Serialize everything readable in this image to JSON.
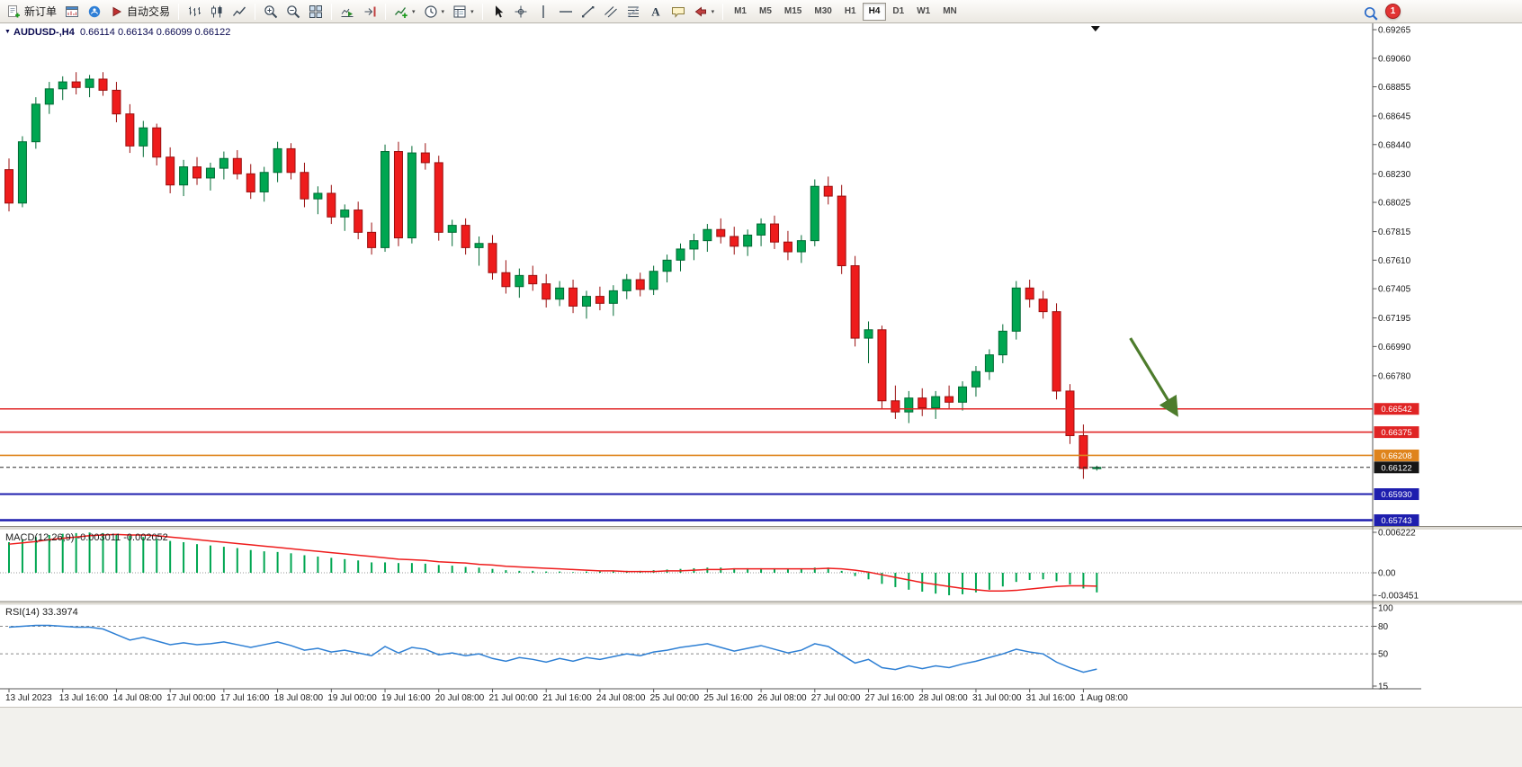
{
  "toolbar": {
    "groups": [
      {
        "buttons": [
          {
            "name": "new-order-button",
            "icon": "new_order",
            "label": "新订单"
          },
          {
            "name": "charts-button",
            "icon": "chart_window"
          },
          {
            "name": "community-button",
            "icon": "community"
          },
          {
            "name": "auto-trading-button",
            "icon": "autotrade",
            "label": "自动交易"
          }
        ]
      },
      {
        "buttons": [
          {
            "name": "bar-chart-button",
            "icon": "bars_chart"
          },
          {
            "name": "candlestick-chart-button",
            "icon": "candles_chart"
          },
          {
            "name": "line-chart-button",
            "icon": "line_chart"
          }
        ]
      },
      {
        "buttons": [
          {
            "name": "zoom-in-button",
            "icon": "zoom_in"
          },
          {
            "name": "zoom-out-button",
            "icon": "zoom_out"
          },
          {
            "name": "tile-windows-button",
            "icon": "tile_windows"
          }
        ]
      },
      {
        "buttons": [
          {
            "name": "auto-scroll-button",
            "icon": "auto_scroll"
          },
          {
            "name": "chart-shift-button",
            "icon": "chart_shift"
          }
        ]
      },
      {
        "buttons": [
          {
            "name": "indicators-button",
            "icon": "indicators",
            "dropdown": true
          },
          {
            "name": "periods-button",
            "icon": "periods",
            "dropdown": true
          },
          {
            "name": "templates-button",
            "icon": "templates",
            "dropdown": true
          }
        ]
      },
      {
        "buttons": [
          {
            "name": "cursor-button",
            "icon": "cursor"
          },
          {
            "name": "crosshair-button",
            "icon": "crosshair"
          },
          {
            "name": "vertical-line-button",
            "icon": "vline"
          },
          {
            "name": "horizontal-line-button",
            "icon": "hline"
          },
          {
            "name": "trendline-button",
            "icon": "trendline"
          },
          {
            "name": "channel-button",
            "icon": "channel"
          },
          {
            "name": "fibonacci-button",
            "icon": "fibo"
          },
          {
            "name": "text-button",
            "icon": "text"
          },
          {
            "name": "text-label-button",
            "icon": "text_label"
          },
          {
            "name": "shapes-button",
            "icon": "shapes",
            "dropdown": true
          }
        ]
      }
    ],
    "timeframes": {
      "options": [
        "M1",
        "M5",
        "M15",
        "M30",
        "H1",
        "H4",
        "D1",
        "W1",
        "MN"
      ],
      "active": "H4"
    },
    "badge_count": "1"
  },
  "chart": {
    "symbol_tf": "AUDUSD-,H4",
    "quote_line": "0.66114 0.66134 0.66099 0.66122"
  },
  "chart_data": {
    "type": "candlestick",
    "symbol": "AUDUSD-",
    "timeframe": "H4",
    "colors": {
      "up": "#00a651",
      "up_stroke": "#006a33",
      "down": "#ee1c1c",
      "down_stroke": "#9a0f0f"
    },
    "y_ticks": [
      "0.69265",
      "0.69060",
      "0.68855",
      "0.68645",
      "0.68440",
      "0.68230",
      "0.68025",
      "0.67815",
      "0.67610",
      "0.67405",
      "0.67195",
      "0.66990",
      "0.66780"
    ],
    "x_labels": [
      "13 Jul 2023",
      "13 Jul 16:00",
      "14 Jul 08:00",
      "17 Jul 00:00",
      "17 Jul 16:00",
      "18 Jul 08:00",
      "19 Jul 00:00",
      "19 Jul 16:00",
      "20 Jul 08:00",
      "21 Jul 00:00",
      "21 Jul 16:00",
      "24 Jul 08:00",
      "25 Jul 00:00",
      "25 Jul 16:00",
      "26 Jul 08:00",
      "27 Jul 00:00",
      "27 Jul 16:00",
      "28 Jul 08:00",
      "31 Jul 00:00",
      "31 Jul 16:00",
      "1 Aug 08:00"
    ],
    "candles_per_label": 4,
    "candles": [
      [
        0.6826,
        0.6834,
        0.6796,
        0.6802
      ],
      [
        0.6802,
        0.685,
        0.6799,
        0.6846
      ],
      [
        0.6846,
        0.6878,
        0.6841,
        0.6873
      ],
      [
        0.6873,
        0.6889,
        0.6866,
        0.6884
      ],
      [
        0.6884,
        0.6893,
        0.6876,
        0.6889
      ],
      [
        0.6889,
        0.6896,
        0.688,
        0.6885
      ],
      [
        0.6885,
        0.6894,
        0.6878,
        0.6891
      ],
      [
        0.6891,
        0.6896,
        0.6879,
        0.6883
      ],
      [
        0.6883,
        0.6889,
        0.686,
        0.6866
      ],
      [
        0.6866,
        0.6873,
        0.6838,
        0.6843
      ],
      [
        0.6843,
        0.6861,
        0.6835,
        0.6856
      ],
      [
        0.6856,
        0.6859,
        0.6829,
        0.6835
      ],
      [
        0.6835,
        0.6842,
        0.6809,
        0.6815
      ],
      [
        0.6815,
        0.6833,
        0.6807,
        0.6828
      ],
      [
        0.6828,
        0.6835,
        0.6815,
        0.682
      ],
      [
        0.682,
        0.6831,
        0.6811,
        0.6827
      ],
      [
        0.6827,
        0.6839,
        0.6819,
        0.6834
      ],
      [
        0.6834,
        0.684,
        0.6819,
        0.6823
      ],
      [
        0.6823,
        0.683,
        0.6805,
        0.681
      ],
      [
        0.681,
        0.6828,
        0.6803,
        0.6824
      ],
      [
        0.6824,
        0.6846,
        0.6817,
        0.6841
      ],
      [
        0.6841,
        0.6845,
        0.6819,
        0.6824
      ],
      [
        0.6824,
        0.6831,
        0.6799,
        0.6805
      ],
      [
        0.6805,
        0.6814,
        0.6794,
        0.6809
      ],
      [
        0.6809,
        0.6815,
        0.6787,
        0.6792
      ],
      [
        0.6792,
        0.6801,
        0.6782,
        0.6797
      ],
      [
        0.6797,
        0.6803,
        0.6776,
        0.6781
      ],
      [
        0.6781,
        0.6788,
        0.6765,
        0.677
      ],
      [
        0.677,
        0.6844,
        0.6767,
        0.6839
      ],
      [
        0.6839,
        0.6846,
        0.6771,
        0.6777
      ],
      [
        0.6777,
        0.6843,
        0.6773,
        0.6838
      ],
      [
        0.6838,
        0.6845,
        0.6826,
        0.6831
      ],
      [
        0.6831,
        0.6836,
        0.6775,
        0.6781
      ],
      [
        0.6781,
        0.679,
        0.6771,
        0.6786
      ],
      [
        0.6786,
        0.6791,
        0.6765,
        0.677
      ],
      [
        0.677,
        0.6778,
        0.6757,
        0.6773
      ],
      [
        0.6773,
        0.6779,
        0.6747,
        0.6752
      ],
      [
        0.6752,
        0.6761,
        0.6737,
        0.6742
      ],
      [
        0.6742,
        0.6755,
        0.6734,
        0.675
      ],
      [
        0.675,
        0.6757,
        0.6739,
        0.6744
      ],
      [
        0.6744,
        0.6751,
        0.6727,
        0.6733
      ],
      [
        0.6733,
        0.6746,
        0.6728,
        0.6741
      ],
      [
        0.6741,
        0.6747,
        0.6723,
        0.6728
      ],
      [
        0.6728,
        0.6739,
        0.6719,
        0.6735
      ],
      [
        0.6735,
        0.6742,
        0.6725,
        0.673
      ],
      [
        0.673,
        0.6743,
        0.6721,
        0.6739
      ],
      [
        0.6739,
        0.6751,
        0.6733,
        0.6747
      ],
      [
        0.6747,
        0.6752,
        0.6735,
        0.674
      ],
      [
        0.674,
        0.6757,
        0.6736,
        0.6753
      ],
      [
        0.6753,
        0.6765,
        0.6745,
        0.6761
      ],
      [
        0.6761,
        0.6773,
        0.6753,
        0.6769
      ],
      [
        0.6769,
        0.678,
        0.6761,
        0.6775
      ],
      [
        0.6775,
        0.6787,
        0.6767,
        0.6783
      ],
      [
        0.6783,
        0.6791,
        0.6773,
        0.6778
      ],
      [
        0.6778,
        0.6785,
        0.6765,
        0.6771
      ],
      [
        0.6771,
        0.6783,
        0.6764,
        0.6779
      ],
      [
        0.6779,
        0.6791,
        0.6771,
        0.6787
      ],
      [
        0.6787,
        0.6793,
        0.6769,
        0.6774
      ],
      [
        0.6774,
        0.6782,
        0.6761,
        0.6767
      ],
      [
        0.6767,
        0.6779,
        0.6759,
        0.6775
      ],
      [
        0.6775,
        0.6819,
        0.6771,
        0.6814
      ],
      [
        0.6814,
        0.6821,
        0.6801,
        0.6807
      ],
      [
        0.6807,
        0.6815,
        0.6751,
        0.6757
      ],
      [
        0.6757,
        0.6764,
        0.6699,
        0.6705
      ],
      [
        0.6705,
        0.6717,
        0.6687,
        0.6711
      ],
      [
        0.6711,
        0.6714,
        0.6654,
        0.666
      ],
      [
        0.666,
        0.6671,
        0.6647,
        0.6652
      ],
      [
        0.6652,
        0.6667,
        0.6644,
        0.6662
      ],
      [
        0.6662,
        0.6669,
        0.6649,
        0.6655
      ],
      [
        0.6655,
        0.6667,
        0.6647,
        0.6663
      ],
      [
        0.6663,
        0.6671,
        0.6654,
        0.6659
      ],
      [
        0.6659,
        0.6674,
        0.6653,
        0.667
      ],
      [
        0.667,
        0.6685,
        0.6663,
        0.6681
      ],
      [
        0.6681,
        0.6697,
        0.6675,
        0.6693
      ],
      [
        0.6693,
        0.6715,
        0.6687,
        0.671
      ],
      [
        0.671,
        0.6746,
        0.6704,
        0.6741
      ],
      [
        0.6741,
        0.6747,
        0.6727,
        0.6733
      ],
      [
        0.6733,
        0.6739,
        0.6719,
        0.6724
      ],
      [
        0.6724,
        0.673,
        0.6661,
        0.6667
      ],
      [
        0.6667,
        0.6672,
        0.6629,
        0.6635
      ],
      [
        0.6635,
        0.6643,
        0.6604,
        0.66114
      ],
      [
        0.66114,
        0.66134,
        0.66099,
        0.66122
      ]
    ],
    "h_lines": [
      {
        "price": 0.66542,
        "label": "0.66542",
        "color": "#e02424",
        "width": 1.6,
        "style": "solid"
      },
      {
        "price": 0.66375,
        "label": "0.66375",
        "color": "#e02424",
        "width": 1.6,
        "style": "solid"
      },
      {
        "price": 0.66208,
        "label": "0.66208",
        "color": "#df841c",
        "width": 1.6,
        "style": "solid"
      },
      {
        "price": 0.66122,
        "label": "0.66122",
        "color": "#2b2b2b",
        "width": 1,
        "style": "dash"
      },
      {
        "price": 0.6593,
        "label": "0.65930",
        "color": "#1e1eae",
        "width": 2,
        "style": "solid"
      },
      {
        "price": 0.65743,
        "label": "0.65743",
        "color": "#1e1eae",
        "width": 2.5,
        "style": "solid"
      }
    ],
    "shift_marker": {
      "i": 80.9
    },
    "arrow": {
      "from": {
        "i": 83.5,
        "price": 0.6705
      },
      "to": {
        "i": 86.9,
        "price": 0.6651
      },
      "color": "#4d7c2c"
    },
    "indicators": [
      {
        "name": "MACD",
        "label": "MACD(12,26,9) -0.003011 -0.002052",
        "y_ticks": [
          {
            "v": 0.006222,
            "label": "0.006222"
          },
          {
            "v": 0,
            "label": "0.00"
          },
          {
            "v": -0.003451,
            "label": "-0.003451"
          }
        ],
        "hist_color": "#00a651",
        "signal_color": "#ee1c1c",
        "hist": [
          0.0047,
          0.0051,
          0.0055,
          0.0058,
          0.006,
          0.0061,
          0.0062,
          0.0061,
          0.0059,
          0.0057,
          0.0055,
          0.0052,
          0.0049,
          0.0047,
          0.0044,
          0.0042,
          0.004,
          0.0038,
          0.0035,
          0.0033,
          0.0032,
          0.003,
          0.0027,
          0.0025,
          0.0023,
          0.0021,
          0.0019,
          0.0016,
          0.0016,
          0.0015,
          0.0015,
          0.0014,
          0.0012,
          0.0011,
          0.0009,
          0.0008,
          0.0006,
          0.0004,
          0.0003,
          0.0003,
          0.0002,
          0.0002,
          0.0001,
          0.0002,
          0.0002,
          0.0002,
          0.0003,
          0.0003,
          0.0004,
          0.0005,
          0.0006,
          0.0007,
          0.0008,
          0.0008,
          0.0007,
          0.0007,
          0.0007,
          0.0007,
          0.0006,
          0.0006,
          0.0008,
          0.0008,
          0.0003,
          -0.0005,
          -0.001,
          -0.0017,
          -0.0022,
          -0.0026,
          -0.0029,
          -0.0032,
          -0.00345,
          -0.0033,
          -0.003,
          -0.0026,
          -0.0021,
          -0.0014,
          -0.0011,
          -0.001,
          -0.0013,
          -0.0018,
          -0.0024,
          -0.003011
        ],
        "signal": [
          0.0044,
          0.0046,
          0.0048,
          0.0051,
          0.0053,
          0.0055,
          0.0057,
          0.0058,
          0.0059,
          0.0058,
          0.0058,
          0.0057,
          0.0055,
          0.0053,
          0.0051,
          0.0049,
          0.0047,
          0.0045,
          0.0043,
          0.0041,
          0.0039,
          0.0037,
          0.0035,
          0.0033,
          0.0031,
          0.0029,
          0.0027,
          0.0025,
          0.0023,
          0.0021,
          0.002,
          0.0019,
          0.0017,
          0.0016,
          0.0015,
          0.0013,
          0.0012,
          0.001,
          0.0009,
          0.0008,
          0.0007,
          0.0006,
          0.0005,
          0.0004,
          0.0003,
          0.0003,
          0.0002,
          0.0002,
          0.0002,
          0.0003,
          0.0003,
          0.0004,
          0.0005,
          0.0005,
          0.0006,
          0.0006,
          0.0006,
          0.0006,
          0.0006,
          0.0006,
          0.0006,
          0.0007,
          0.0006,
          0.0004,
          0.0001,
          -0.0003,
          -0.0007,
          -0.0011,
          -0.0015,
          -0.0018,
          -0.0021,
          -0.0024,
          -0.0026,
          -0.0028,
          -0.0028,
          -0.0027,
          -0.0025,
          -0.0023,
          -0.0021,
          -0.002,
          -0.002,
          -0.002052
        ]
      },
      {
        "name": "RSI",
        "label": "RSI(14) 33.3974",
        "y_ticks": [
          {
            "v": 100,
            "label": "100"
          },
          {
            "v": 80,
            "label": "80"
          },
          {
            "v": 50,
            "label": "50"
          },
          {
            "v": 15,
            "label": "15"
          }
        ],
        "levels": [
          80,
          50
        ],
        "line_color": "#2d7fd4",
        "values": [
          79,
          80,
          81,
          81,
          80,
          79,
          79,
          77,
          71,
          65,
          68,
          64,
          60,
          62,
          60,
          61,
          63,
          60,
          57,
          60,
          63,
          59,
          54,
          56,
          52,
          54,
          51,
          48,
          58,
          51,
          57,
          55,
          49,
          51,
          48,
          50,
          45,
          42,
          46,
          44,
          41,
          45,
          42,
          46,
          44,
          47,
          50,
          48,
          52,
          54,
          57,
          59,
          61,
          57,
          53,
          56,
          59,
          55,
          51,
          54,
          61,
          58,
          49,
          40,
          44,
          35,
          33,
          37,
          34,
          37,
          35,
          39,
          42,
          46,
          50,
          55,
          52,
          50,
          41,
          35,
          30,
          33.3974
        ]
      }
    ]
  }
}
